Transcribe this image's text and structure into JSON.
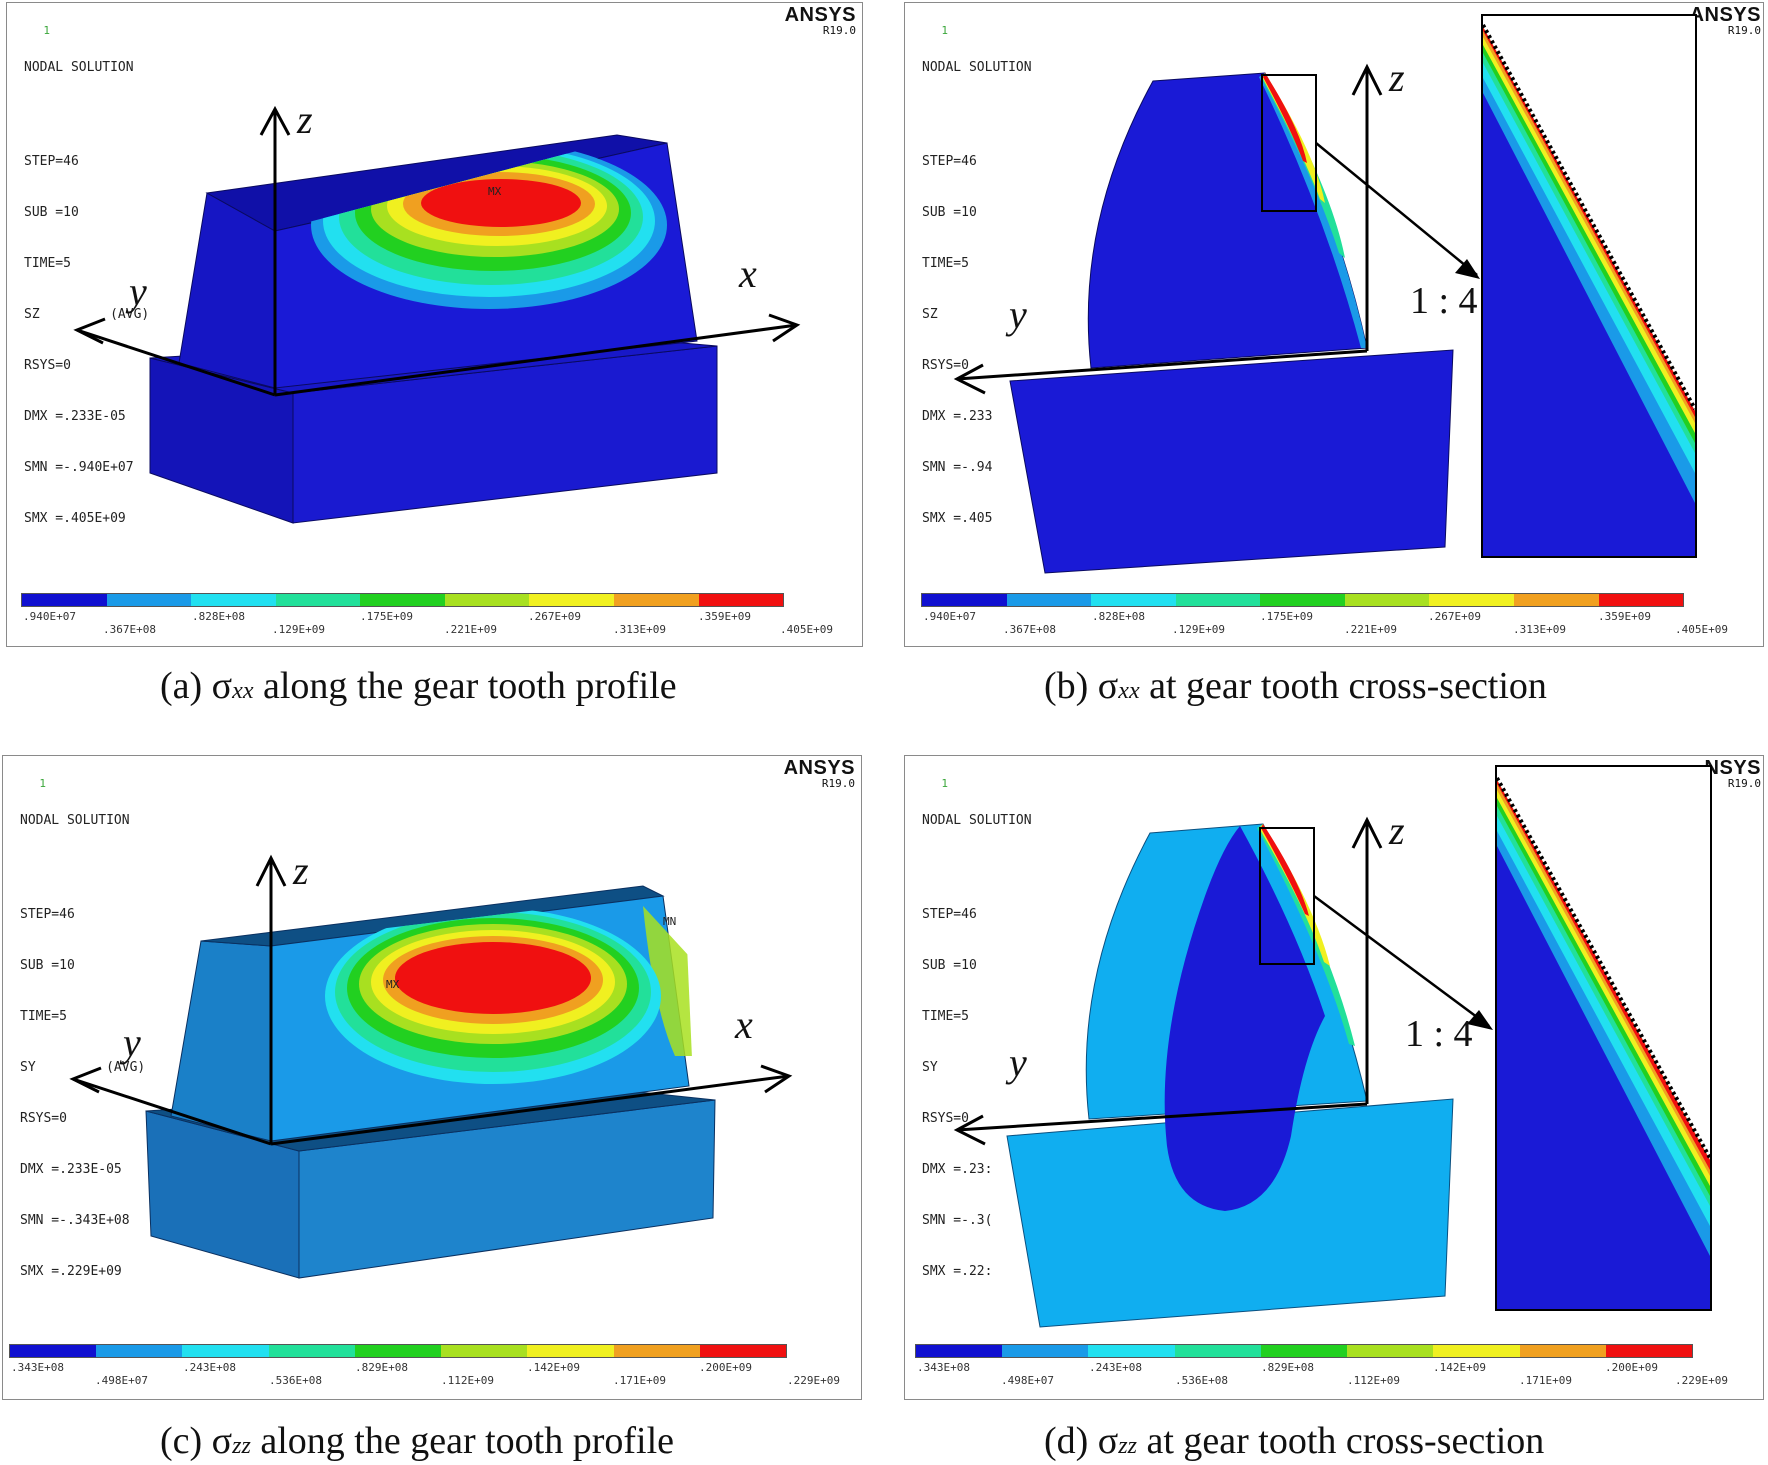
{
  "legend_colors": [
    "#1010d0",
    "#1a9ae8",
    "#22e0f0",
    "#22e09a",
    "#22d020",
    "#a8e020",
    "#f0f020",
    "#f0a020",
    "#f01010"
  ],
  "panels": {
    "a": {
      "num": "1",
      "title": "NODAL SOLUTION",
      "lines": [
        "STEP=46",
        "SUB =10",
        "TIME=5",
        "SZ         (AVG)",
        "RSYS=0",
        "DMX =.233E-05",
        "SMN =-.940E+07",
        "SMX =.405E+09"
      ],
      "ansys": "ANSYS",
      "release": "R19.0",
      "legend_top": [
        ".940E+07",
        ".828E+08",
        ".175E+09",
        ".267E+09",
        ".359E+09"
      ],
      "legend_bottom": [
        ".367E+08",
        ".129E+09",
        ".221E+09",
        ".313E+09",
        ".405E+09"
      ],
      "max_marker": "MX",
      "axis_labels": {
        "z": "z",
        "x": "x",
        "y": "y"
      },
      "caption_prefix": "(a) σ",
      "caption_sub": "xx",
      "caption_suffix": " along the gear tooth profile"
    },
    "b": {
      "num": "1",
      "title": "NODAL SOLUTION",
      "lines": [
        "STEP=46",
        "SUB =10",
        "TIME=5",
        "SZ",
        "RSYS=0",
        "DMX =.233",
        "SMN =-.94",
        "SMX =.405"
      ],
      "ansys": "ANSYS",
      "release": "R19.0",
      "legend_top": [
        ".940E+07",
        ".828E+08",
        ".175E+09",
        ".267E+09",
        ".359E+09"
      ],
      "legend_bottom": [
        ".367E+08",
        ".129E+09",
        ".221E+09",
        ".313E+09",
        ".405E+09"
      ],
      "ratio": "1 : 4",
      "axis_labels": {
        "z": "z",
        "y": "y"
      },
      "caption_prefix": "(b) σ",
      "caption_sub": "xx",
      "caption_suffix": " at gear tooth cross-section"
    },
    "c": {
      "num": "1",
      "title": "NODAL SOLUTION",
      "lines": [
        "STEP=46",
        "SUB =10",
        "TIME=5",
        "SY         (AVG)",
        "RSYS=0",
        "DMX =.233E-05",
        "SMN =-.343E+08",
        "SMX =.229E+09"
      ],
      "ansys": "ANSYS",
      "release": "R19.0",
      "legend_top": [
        ".343E+08",
        ".243E+08",
        ".829E+08",
        ".142E+09",
        ".200E+09"
      ],
      "legend_bottom": [
        ".498E+07",
        ".536E+08",
        ".112E+09",
        ".171E+09",
        ".229E+09"
      ],
      "max_marker": "MX",
      "min_marker": "MN",
      "axis_labels": {
        "z": "z",
        "x": "x",
        "y": "y"
      },
      "caption_prefix": "(c) σ",
      "caption_sub": "zz",
      "caption_suffix": " along the gear tooth profile"
    },
    "d": {
      "num": "1",
      "title": "NODAL SOLUTION",
      "lines": [
        "STEP=46",
        "SUB =10",
        "TIME=5",
        "SY",
        "RSYS=0",
        "DMX =.23:",
        "SMN =-.3(",
        "SMX =.22:"
      ],
      "ansys": "NSYS",
      "release": "R19.0",
      "legend_top": [
        ".343E+08",
        ".243E+08",
        ".829E+08",
        ".142E+09",
        ".200E+09"
      ],
      "legend_bottom": [
        ".498E+07",
        ".536E+08",
        ".112E+09",
        ".171E+09",
        ".229E+09"
      ],
      "ratio": "1 : 4",
      "axis_labels": {
        "z": "z",
        "y": "y"
      },
      "caption_prefix": "(d) σ",
      "caption_sub": "zz",
      "caption_suffix": " at gear tooth cross-section"
    }
  }
}
